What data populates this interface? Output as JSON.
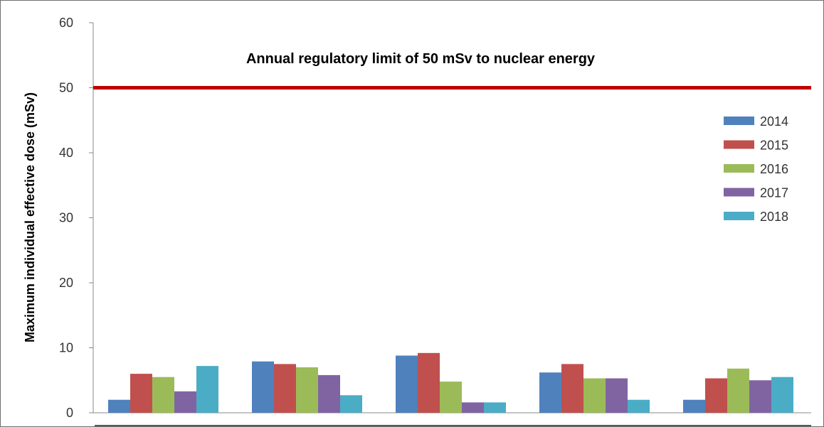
{
  "chart_data": {
    "type": "bar",
    "title": "",
    "xlabel": "",
    "ylabel": "Maximum individual effective dose  (mSv)",
    "ylim": [
      0,
      60
    ],
    "yticks": [
      0,
      10,
      20,
      30,
      40,
      50,
      60
    ],
    "categories": [
      "",
      "",
      "",
      "",
      ""
    ],
    "series": [
      {
        "name": "2014",
        "color": "#4F81BD",
        "values": [
          2.0,
          7.9,
          8.8,
          6.2,
          2.0
        ]
      },
      {
        "name": "2015",
        "color": "#C0504D",
        "values": [
          6.0,
          7.5,
          9.2,
          7.5,
          5.3
        ]
      },
      {
        "name": "2016",
        "color": "#9BBB59",
        "values": [
          5.5,
          7.0,
          4.8,
          5.3,
          6.8
        ]
      },
      {
        "name": "2017",
        "color": "#8064A2",
        "values": [
          3.3,
          5.8,
          1.6,
          5.3,
          5.0
        ]
      },
      {
        "name": "2018",
        "color": "#4BACC6",
        "values": [
          7.2,
          2.7,
          1.6,
          2.0,
          5.5
        ]
      }
    ],
    "reference_line": {
      "value": 50,
      "color": "#C00000",
      "label": "Annual regulatory limit of 50 mSv to nuclear energy"
    },
    "grid": false,
    "legend": "right"
  }
}
